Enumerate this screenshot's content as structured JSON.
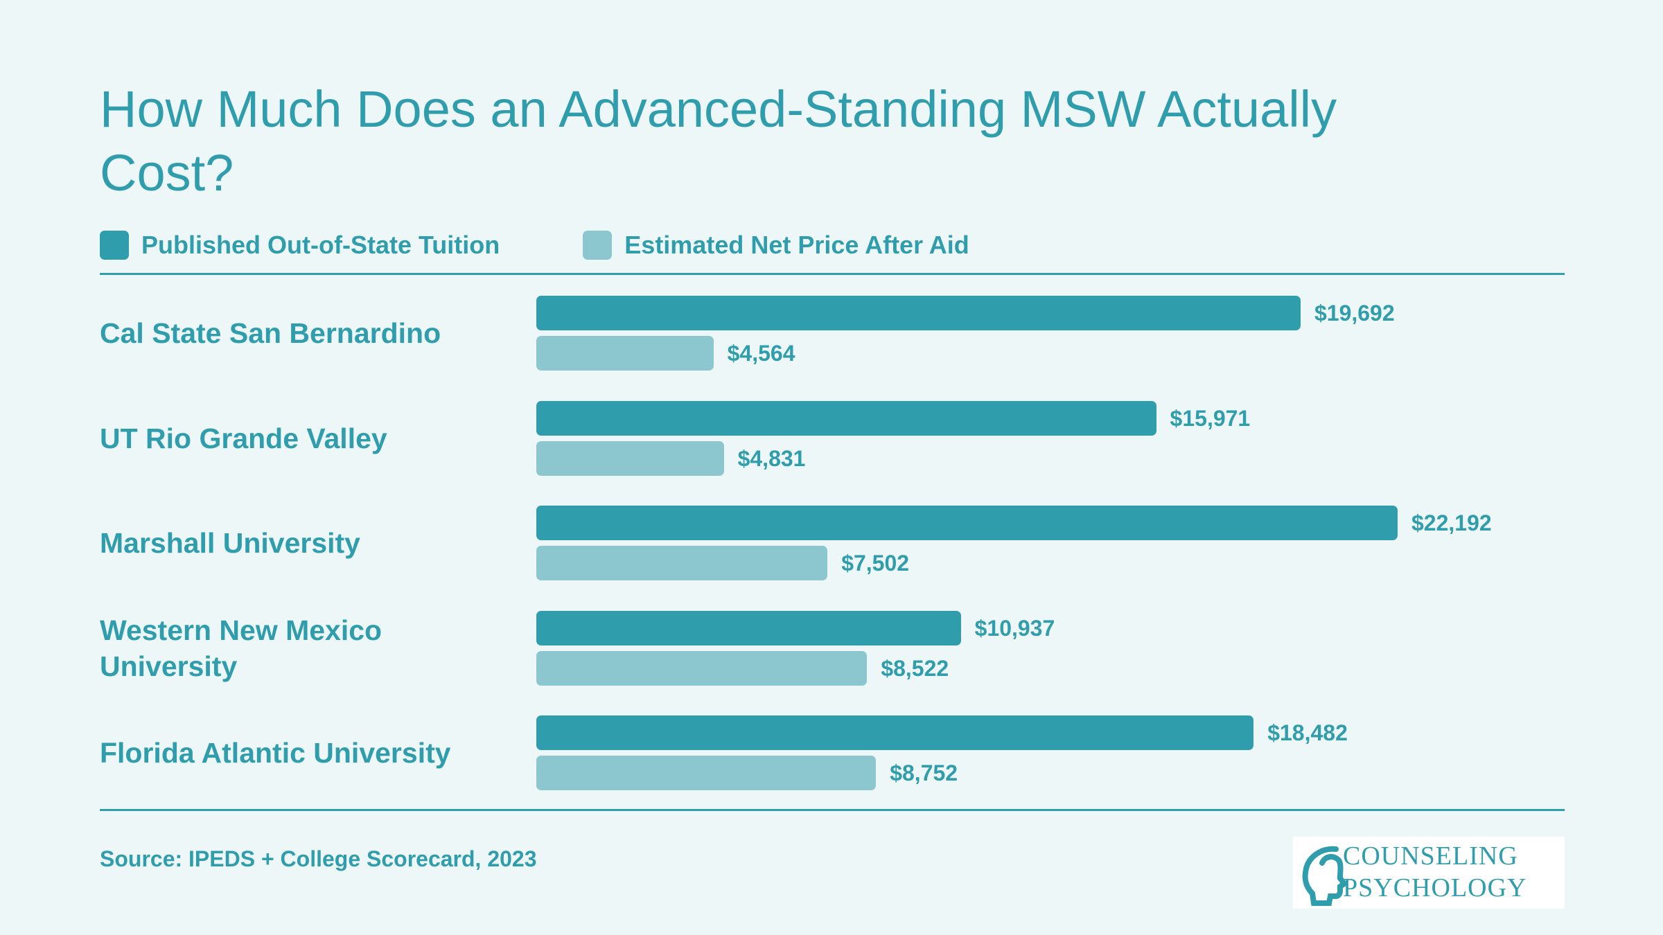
{
  "title": "How Much Does an Advanced-Standing MSW Actually Cost?",
  "legend": {
    "published_label": "Published Out-of-State Tuition",
    "net_label": "Estimated Net Price After Aid"
  },
  "colors": {
    "published": "#2f9dab",
    "net": "#8cc7cf",
    "text": "#2f9dab"
  },
  "source": "Source: IPEDS + College Scorecard, 2023",
  "logo": {
    "line1": "COUNSELING",
    "line2": "PSYCHOLOGY"
  },
  "chart_data": {
    "type": "bar",
    "orientation": "horizontal",
    "categories": [
      "Cal State San Bernardino",
      "UT Rio Grande Valley",
      "Marshall University",
      "Western New Mexico University",
      "Florida Atlantic University"
    ],
    "series": [
      {
        "name": "Published Out-of-State Tuition",
        "values": [
          19692,
          15971,
          22192,
          10937,
          18482
        ],
        "labels": [
          "$19,692",
          "$15,971",
          "$22,192",
          "$10,937",
          "$18,482"
        ]
      },
      {
        "name": "Estimated Net Price After Aid",
        "values": [
          4564,
          4831,
          7502,
          8522,
          8752
        ],
        "labels": [
          "$4,564",
          "$4,831",
          "$7,502",
          "$8,522",
          "$8,752"
        ]
      }
    ],
    "xlim": [
      0,
      22192
    ],
    "grid": false,
    "legend_position": "top-left"
  }
}
